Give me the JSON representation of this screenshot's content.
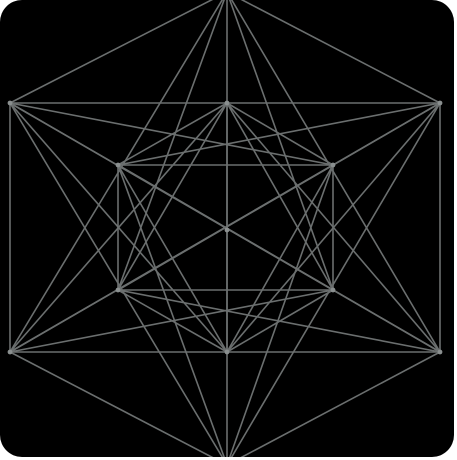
{
  "image": {
    "subject": "metatrons-cube-icon",
    "colors": {
      "background": "#000000",
      "tile_border": "#ffffff",
      "line": "#6b6f6f",
      "vertex": "#8a8f8f"
    }
  }
}
